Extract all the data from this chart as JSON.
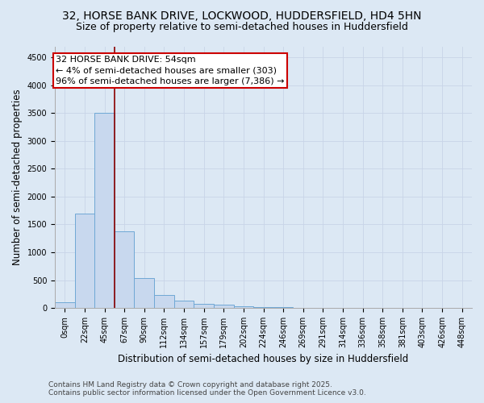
{
  "title_line1": "32, HORSE BANK DRIVE, LOCKWOOD, HUDDERSFIELD, HD4 5HN",
  "title_line2": "Size of property relative to semi-detached houses in Huddersfield",
  "xlabel": "Distribution of semi-detached houses by size in Huddersfield",
  "ylabel": "Number of semi-detached properties",
  "footer_line1": "Contains HM Land Registry data © Crown copyright and database right 2025.",
  "footer_line2": "Contains public sector information licensed under the Open Government Licence v3.0.",
  "categories": [
    "0sqm",
    "22sqm",
    "45sqm",
    "67sqm",
    "90sqm",
    "112sqm",
    "134sqm",
    "157sqm",
    "179sqm",
    "202sqm",
    "224sqm",
    "246sqm",
    "269sqm",
    "291sqm",
    "314sqm",
    "336sqm",
    "358sqm",
    "381sqm",
    "403sqm",
    "426sqm",
    "448sqm"
  ],
  "values": [
    100,
    1700,
    3500,
    1380,
    530,
    230,
    130,
    80,
    60,
    30,
    20,
    10,
    5,
    5,
    5,
    5,
    3,
    3,
    0,
    0,
    0
  ],
  "bar_color": "#c8d8ee",
  "bar_edge_color": "#6fa8d5",
  "bar_edge_width": 0.7,
  "grid_color": "#c8d4e8",
  "bg_color": "#dce8f4",
  "vline_color": "#8b0000",
  "vline_x": 2.5,
  "annotation_text": "32 HORSE BANK DRIVE: 54sqm\n← 4% of semi-detached houses are smaller (303)\n96% of semi-detached houses are larger (7,386) →",
  "annotation_box_color": "#ffffff",
  "annotation_box_edge": "#cc0000",
  "ylim": [
    0,
    4700
  ],
  "yticks": [
    0,
    500,
    1000,
    1500,
    2000,
    2500,
    3000,
    3500,
    4000,
    4500
  ],
  "title_fontsize": 10,
  "subtitle_fontsize": 9,
  "label_fontsize": 8.5,
  "tick_fontsize": 7,
  "annotation_fontsize": 8,
  "footer_fontsize": 6.5
}
